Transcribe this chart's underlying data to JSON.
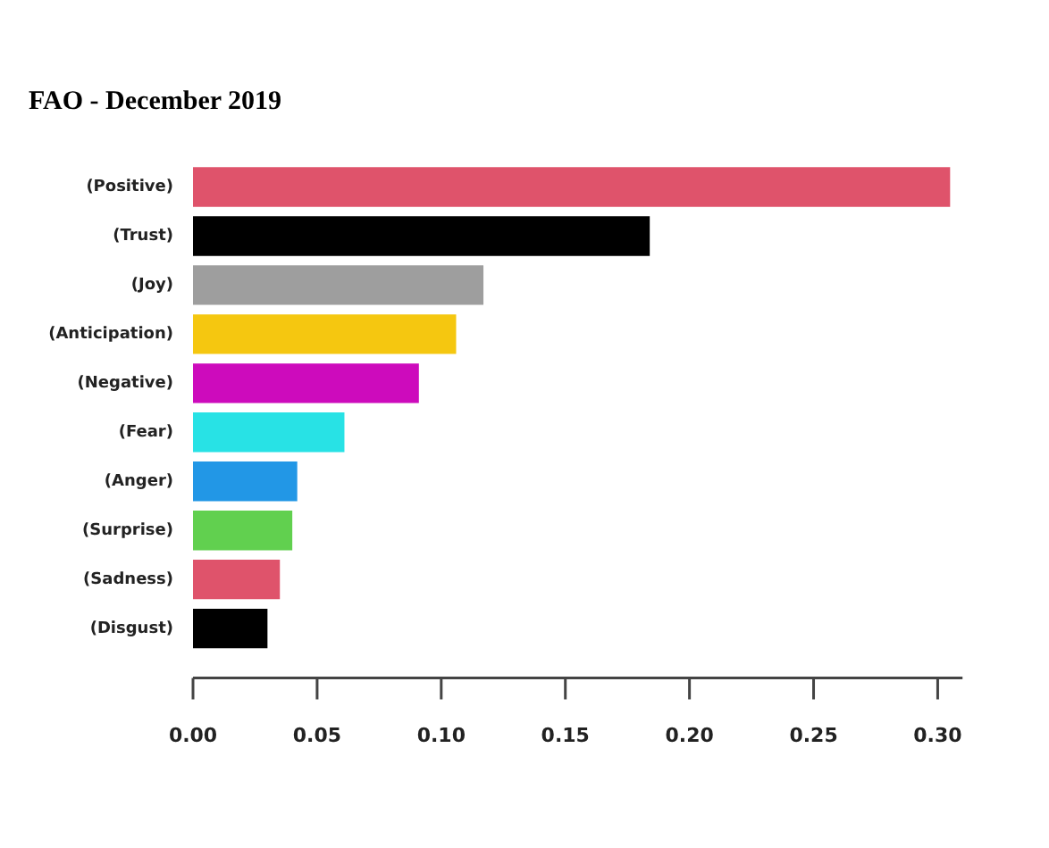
{
  "chart_data": {
    "type": "bar",
    "orientation": "horizontal",
    "title": "FAO - December 2019",
    "categories": [
      "(Positive)",
      "(Trust)",
      "(Joy)",
      "(Anticipation)",
      "(Negative)",
      "(Fear)",
      "(Anger)",
      "(Surprise)",
      "(Sadness)",
      "(Disgust)"
    ],
    "values": [
      0.305,
      0.184,
      0.117,
      0.106,
      0.091,
      0.061,
      0.042,
      0.04,
      0.035,
      0.03
    ],
    "colors": [
      "#df536b",
      "#000000",
      "#9e9e9e",
      "#f5c710",
      "#cd0bbc",
      "#28e2e5",
      "#2297e6",
      "#61d04f",
      "#df536b",
      "#000000"
    ],
    "xlim": [
      0,
      0.31
    ],
    "xticks": [
      {
        "value": 0,
        "label": "0.00"
      },
      {
        "value": 0.05,
        "label": "0.05"
      },
      {
        "value": 0.1,
        "label": "0.10"
      },
      {
        "value": 0.15,
        "label": "0.15"
      },
      {
        "value": 0.2,
        "label": "0.20"
      },
      {
        "value": 0.25,
        "label": "0.25"
      },
      {
        "value": 0.3,
        "label": "0.30"
      }
    ],
    "grid": false,
    "legend": false
  }
}
